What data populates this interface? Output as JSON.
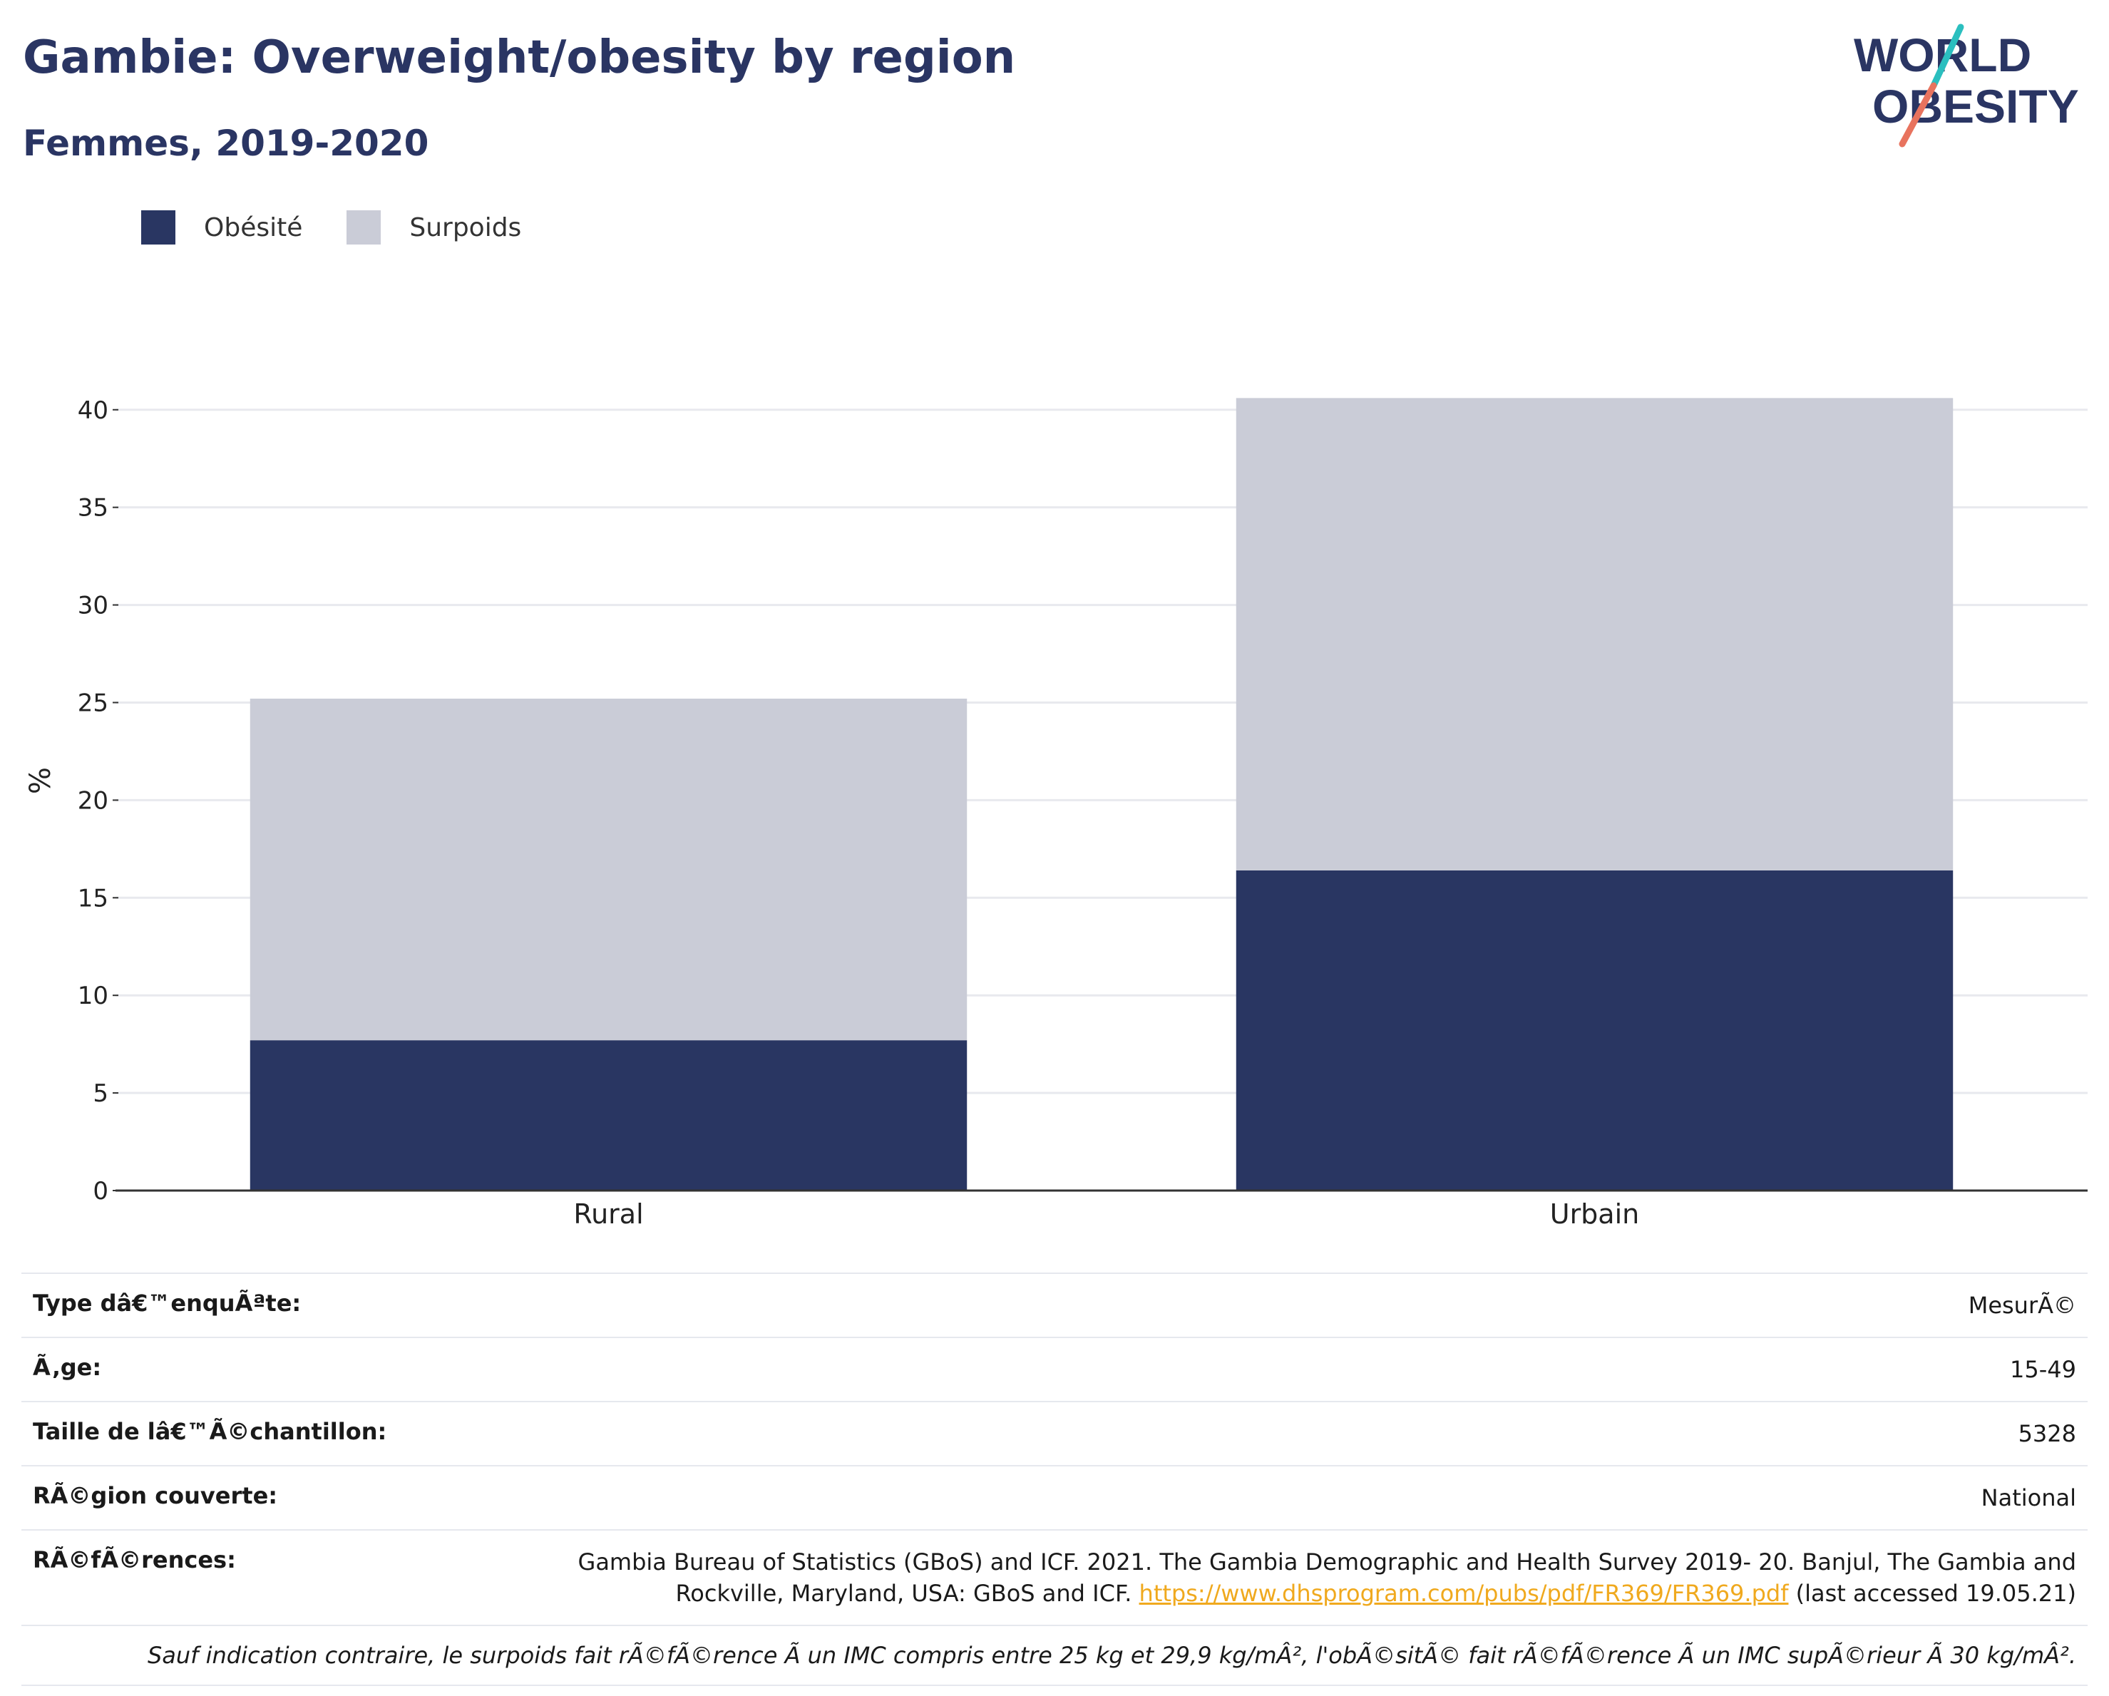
{
  "title": "Gambie: Overweight/obesity by region",
  "subtitle": "Femmes, 2019-2020",
  "logo": {
    "line1": "WORLD",
    "line2": "OBESITY",
    "accent_colors": [
      "#2bbfbf",
      "#e8735e"
    ],
    "text_color": "#2a3563"
  },
  "colors": {
    "obesite": "#293662",
    "surpoids": "#caccd7",
    "title": "#2a3563",
    "link": "#f0a91e"
  },
  "legend": [
    {
      "label": "Obésité",
      "color": "#293662"
    },
    {
      "label": "Surpoids",
      "color": "#caccd7"
    }
  ],
  "chart_data": {
    "type": "bar",
    "stacked": true,
    "categories": [
      "Rural",
      "Urbain"
    ],
    "series": [
      {
        "name": "Obésité",
        "values": [
          7.7,
          16.4
        ]
      },
      {
        "name": "Surpoids",
        "values": [
          17.5,
          24.2
        ]
      }
    ],
    "totals": [
      25.2,
      40.6
    ],
    "ylabel": "%",
    "xlabel": "",
    "ylim": [
      0,
      42
    ],
    "yticks": [
      0,
      5,
      10,
      15,
      20,
      25,
      30,
      35,
      40
    ],
    "grid": true,
    "legend_position": "top-left"
  },
  "info": {
    "survey_type_label": "Type dâ€™enquÃªte:",
    "survey_type_value": "MesurÃ©",
    "age_label": "Ã‚ge:",
    "age_value": "15-49",
    "sample_label": "Taille de lâ€™Ã©chantillon:",
    "sample_value": "5328",
    "region_label": "RÃ©gion couverte:",
    "region_value": "National",
    "references_label": "RÃ©fÃ©rences:",
    "references_text_1": "Gambia Bureau of Statistics (GBoS) and ICF. 2021. The Gambia Demographic and Health Survey 2019- 20. Banjul, The Gambia and",
    "references_text_2": "Rockville, Maryland, USA: GBoS and ICF.",
    "references_link": "https://www.dhsprogram.com/pubs/pdf/FR369/FR369.pdf",
    "references_suffix": "(last accessed 19.05.21)",
    "note": "Sauf indication contraire, le surpoids fait rÃ©fÃ©rence Ã  un IMC compris entre 25 kg et 29,9 kg/mÂ², l'obÃ©sitÃ© fait rÃ©fÃ©rence Ã  un IMC supÃ©rieur Ã  30 kg/mÂ²."
  }
}
